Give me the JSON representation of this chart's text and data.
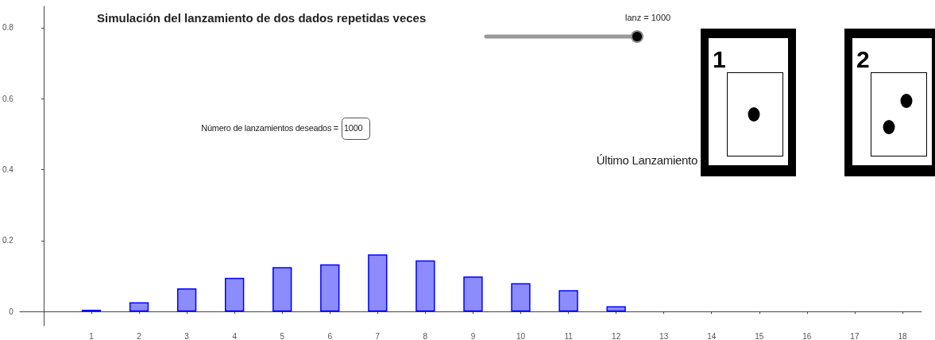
{
  "chart_data": {
    "type": "bar",
    "title": "Simulación del lanzamiento de dos dados repetidas veces",
    "x": [
      1,
      2,
      3,
      4,
      5,
      6,
      7,
      8,
      9,
      10,
      11,
      12
    ],
    "values": [
      0.005,
      0.026,
      0.065,
      0.095,
      0.125,
      0.133,
      0.161,
      0.144,
      0.099,
      0.08,
      0.06,
      0.015
    ],
    "color": "#8c8cff",
    "xlim": [
      -0.5,
      18.4
    ],
    "xticks": [
      1,
      2,
      3,
      4,
      5,
      6,
      7,
      8,
      9,
      10,
      11,
      12,
      13,
      14,
      15,
      16,
      17,
      18
    ],
    "ylim": [
      -0.04,
      0.86
    ],
    "yticks": [
      0,
      0.2,
      0.4,
      0.6,
      0.8
    ],
    "grid": false,
    "annotations": [
      "Número de lanzamientos deseados =",
      "1000",
      "lanz = 1000",
      "Último Lanzamiento",
      "1",
      "2"
    ]
  }
}
